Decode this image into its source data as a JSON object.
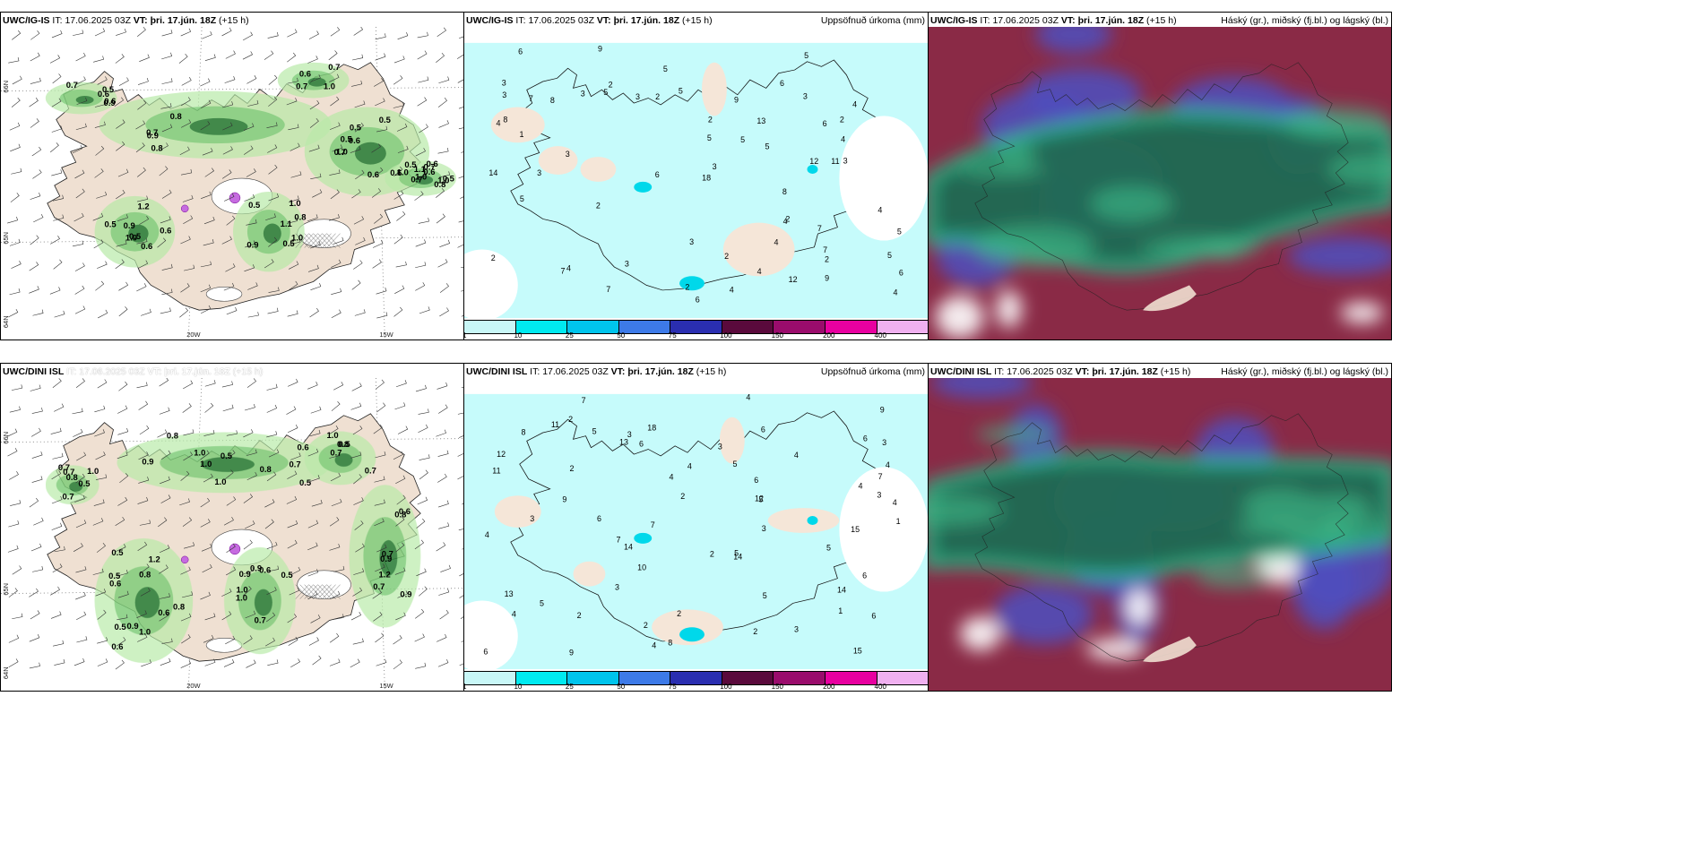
{
  "panels": [
    {
      "model": "UWC/IG-IS",
      "it_prefix": "IT:",
      "it": "17.06.2025 03Z",
      "vt_prefix": "VT:",
      "vt": "þri. 17.jún. 18Z",
      "lead": "(+15 h)",
      "title_right": ""
    },
    {
      "model": "UWC/IG-IS",
      "it_prefix": "IT:",
      "it": "17.06.2025 03Z",
      "vt_prefix": "VT:",
      "vt": "þri. 17.jún. 18Z",
      "lead": "(+15 h)",
      "title_right": "Uppsöfnuð úrkoma (mm)"
    },
    {
      "model": "UWC/IG-IS",
      "it_prefix": "IT:",
      "it": "17.06.2025 03Z",
      "vt_prefix": "VT:",
      "vt": "þri. 17.jún. 18Z",
      "lead": "(+15 h)",
      "title_right": "Háský (gr.), miðský (fj.bl.) og lágský (bl.)"
    },
    {
      "model": "UWC/DINI ISL",
      "it_prefix": "IT:",
      "it": "17.06.2025 03Z",
      "vt_prefix": "VT:",
      "vt": "þri. 17.jún. 18Z",
      "lead": "(+15 h)",
      "title_right": ""
    },
    {
      "model": "UWC/DINI ISL",
      "it_prefix": "IT:",
      "it": "17.06.2025 03Z",
      "vt_prefix": "VT:",
      "vt": "þri. 17.jún. 18Z",
      "lead": "(+15 h)",
      "title_right": "Uppsöfnuð úrkoma (mm)"
    },
    {
      "model": "UWC/DINI ISL",
      "it_prefix": "IT:",
      "it": "17.06.2025 03Z",
      "vt_prefix": "VT:",
      "vt": "þri. 17.jún. 18Z",
      "lead": "(+15 h)",
      "title_right": "Háský (gr.), miðský (fj.bl.) og lágský (bl.)"
    }
  ],
  "axes": {
    "lat_top": "66N",
    "lat_mid": "65N",
    "lat_bot": "64N",
    "lon_left": "20W",
    "lon_right": "15W"
  },
  "colorbar": {
    "ticks": [
      "1",
      "10",
      "25",
      "50",
      "75",
      "100",
      "150",
      "200",
      "400"
    ],
    "colors": [
      "#c8f7f7",
      "#00eaf0",
      "#00c4ec",
      "#3d7ae8",
      "#2a2eb0",
      "#5a0a3c",
      "#9a0c6c",
      "#e800a0",
      "#f0b0f0"
    ]
  },
  "labels": {
    "wind_top": [
      "0.6",
      "0.6",
      "0.8",
      "0.9",
      "1.0",
      "0.6",
      "0.5",
      "0.9",
      "1.0",
      "0.7",
      "0.6",
      "0.8",
      "1.0",
      "0.5",
      "0.7",
      "0.9",
      "0.5",
      "0.6",
      "0.8",
      "0.6",
      "0.7",
      "1.0",
      "0.5",
      "1.1",
      "0.9",
      "1.0",
      "0.5",
      "0.7",
      "1.2",
      "1.0",
      "0.7",
      "0.5",
      "0.5",
      "0.6",
      "0.8",
      "1.1",
      "0.6",
      "0.7",
      "1.0",
      "0.6",
      "0.5",
      "0.5",
      "1.0",
      "0.7",
      "0.6",
      "0.5"
    ],
    "wind_bot": [
      "1.2",
      "0.7",
      "0.7",
      "0.9",
      "1.0",
      "0.8",
      "0.6",
      "0.5",
      "1.0",
      "0.9",
      "0.7",
      "0.8",
      "0.9",
      "0.8",
      "0.6",
      "0.5",
      "0.7",
      "0.9",
      "0.5",
      "0.6",
      "0.7",
      "1.0",
      "0.8",
      "0.6",
      "0.9",
      "0.7",
      "0.5",
      "1.0",
      "1.2",
      "0.7",
      "1.0",
      "0.6",
      "0.8",
      "0.5",
      "1.0",
      "0.8",
      "0.5",
      "0.7",
      "0.9",
      "1.0",
      "0.5",
      "0.6",
      "0.7",
      "0.8",
      "1.0",
      "0.5"
    ],
    "precip_top": [
      "2",
      "2",
      "3",
      "2",
      "2",
      "5",
      "4",
      "6",
      "3",
      "5",
      "7",
      "9",
      "8",
      "7",
      "6",
      "3",
      "5",
      "4",
      "2",
      "2",
      "3",
      "3",
      "5",
      "6",
      "4",
      "8",
      "6",
      "4",
      "3",
      "5",
      "7",
      "3",
      "5",
      "3",
      "2",
      "2",
      "9",
      "5",
      "12",
      "9",
      "18",
      "14",
      "12",
      "7",
      "13",
      "6",
      "5",
      "4",
      "3",
      "11",
      "4",
      "5",
      "3",
      "6",
      "4",
      "5",
      "8",
      "7",
      "4",
      "2",
      "3",
      "1",
      "4",
      "4",
      "2"
    ],
    "precip_bot": [
      "1",
      "3",
      "2",
      "5",
      "3",
      "4",
      "6",
      "7",
      "4",
      "6",
      "5",
      "10",
      "14",
      "15",
      "8",
      "2",
      "3",
      "5",
      "4",
      "6",
      "9",
      "7",
      "3",
      "2",
      "4",
      "6",
      "11",
      "14",
      "13",
      "9",
      "8",
      "4",
      "6",
      "5",
      "3",
      "2",
      "4",
      "18",
      "14",
      "15",
      "12",
      "7",
      "6",
      "4",
      "5",
      "13",
      "12",
      "11",
      "9",
      "5",
      "3",
      "2",
      "2",
      "1",
      "4",
      "5",
      "3",
      "2",
      "4",
      "6",
      "2",
      "7",
      "3",
      "4",
      "6"
    ]
  }
}
